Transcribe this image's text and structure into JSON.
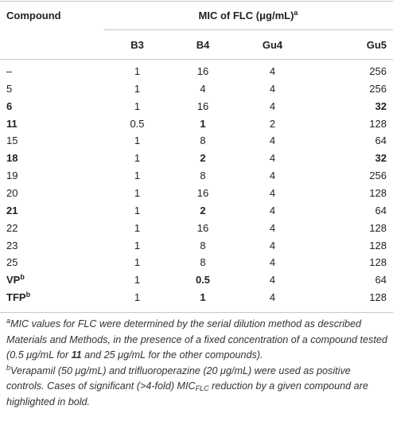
{
  "table": {
    "header": {
      "compound": "Compound",
      "group": "MIC of FLC (μg/mL)",
      "group_note": "a",
      "columns": [
        "B3",
        "B4",
        "Gu4",
        "Gu5"
      ]
    },
    "rows": [
      {
        "cells": [
          "–",
          "1",
          "16",
          "4",
          "256"
        ]
      },
      {
        "cells": [
          "5",
          "1",
          "4",
          "4",
          "256"
        ]
      },
      {
        "cells": [
          "6",
          "1",
          "16",
          "4",
          "32"
        ],
        "bold": [
          0,
          4
        ]
      },
      {
        "cells": [
          "11",
          "0.5",
          "1",
          "2",
          "128"
        ],
        "bold": [
          0,
          2
        ]
      },
      {
        "cells": [
          "15",
          "1",
          "8",
          "4",
          "64"
        ]
      },
      {
        "cells": [
          "18",
          "1",
          "2",
          "4",
          "32"
        ],
        "bold": [
          0,
          2,
          4
        ]
      },
      {
        "cells": [
          "19",
          "1",
          "8",
          "4",
          "256"
        ]
      },
      {
        "cells": [
          "20",
          "1",
          "16",
          "4",
          "128"
        ]
      },
      {
        "cells": [
          "21",
          "1",
          "2",
          "4",
          "64"
        ],
        "bold": [
          0,
          2
        ]
      },
      {
        "cells": [
          "22",
          "1",
          "16",
          "4",
          "128"
        ]
      },
      {
        "cells": [
          "23",
          "1",
          "8",
          "4",
          "128"
        ]
      },
      {
        "cells": [
          "25",
          "1",
          "8",
          "4",
          "128"
        ]
      },
      {
        "cells": [
          "VP",
          "1",
          "0.5",
          "4",
          "64"
        ],
        "bold": [
          0,
          2
        ],
        "note": "b"
      },
      {
        "cells": [
          "TFP",
          "1",
          "1",
          "4",
          "128"
        ],
        "bold": [
          0,
          2
        ],
        "note": "b"
      }
    ],
    "footnotes": [
      {
        "mark": "a",
        "segments": [
          {
            "text": "MIC values for FLC were determined by the serial dilution method as described Materials and Methods, in the presence of a fixed concentration of a compound tested (0.5 μg/mL for "
          },
          {
            "text": "11",
            "style": "bold"
          },
          {
            "text": " and 25 μg/mL for the other compounds)."
          }
        ]
      },
      {
        "mark": "b",
        "segments": [
          {
            "text": "Verapamil (50 μg/mL) and trifluoroperazine (20 μg/mL) were used as positive controls. Cases of significant (>4-fold) MIC"
          },
          {
            "text": "FLC",
            "style": "sub"
          },
          {
            "text": " reduction by a given compound are highlighted in bold."
          }
        ]
      }
    ]
  }
}
